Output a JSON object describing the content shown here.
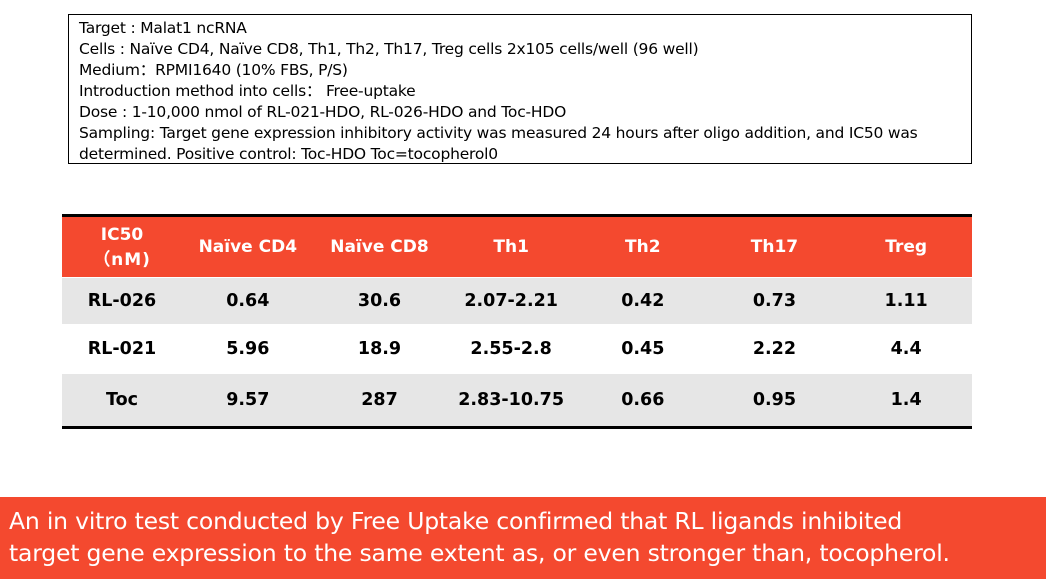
{
  "info": {
    "lines": [
      "Target : Malat1 ncRNA",
      "Cells : Naïve CD4, Naïve CD8, Th1, Th2, Th17, Treg cells 2x105 cells/well (96 well)",
      "Medium：RPMI1640 (10% FBS, P/S)",
      "Introduction method into cells： Free-uptake",
      "Dose : 1-10,000 nmol of RL-021-HDO, RL-026-HDO and Toc-HDO",
      "Sampling: Target gene expression inhibitory activity was measured 24 hours after oligo addition, and IC50 was",
      "determined. Positive control: Toc-HDO     Toc=tocopherol0"
    ]
  },
  "table": {
    "header_line1": "IC50",
    "header_line2": "（nM)",
    "columns": [
      "Naïve CD4",
      "Naïve CD8",
      "Th1",
      "Th2",
      "Th17",
      "Treg"
    ],
    "rows": [
      {
        "label": "RL-026",
        "values": [
          "0.64",
          "30.6",
          "2.07-2.21",
          "0.42",
          "0.73",
          "1.11"
        ]
      },
      {
        "label": "RL-021",
        "values": [
          "5.96",
          "18.9",
          "2.55-2.8",
          "0.45",
          "2.22",
          "4.4"
        ]
      },
      {
        "label": "Toc",
        "values": [
          "9.57",
          "287",
          "2.83-10.75",
          "0.66",
          "0.95",
          "1.4"
        ]
      }
    ],
    "header_color": "#f4492f",
    "stripe_color": "#e6e6e6"
  },
  "banner": {
    "line1": "An in vitro test conducted by Free Uptake confirmed that RL ligands inhibited",
    "line2": "target gene expression to the same extent as, or even stronger than, tocopherol."
  }
}
